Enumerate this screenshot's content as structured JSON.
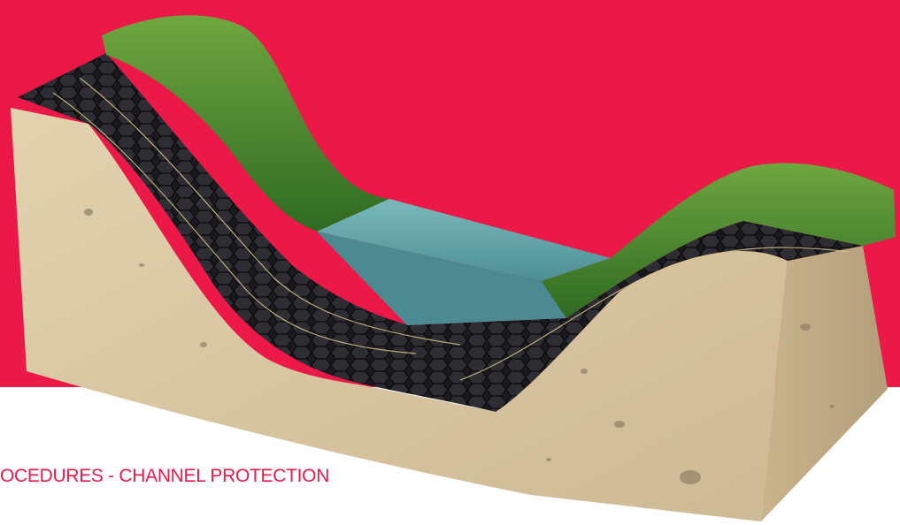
{
  "caption": {
    "text": "OCEDURES - CHANNEL PROTECTION"
  },
  "colors": {
    "brand_red": "#EC1848",
    "soil": "#D7C6A2",
    "soil_dark": "#BCA986",
    "grass": "#3E7A2A",
    "grass_light": "#5E9A3A",
    "water": "#5A9BA0",
    "water_top": "#6FB1B3",
    "geocell": "#1E1E22"
  },
  "illustration": {
    "subject": "channel-protection-cross-section",
    "elements": [
      "soil-block",
      "geocell-layer",
      "grass-slopes",
      "water-channel"
    ]
  }
}
